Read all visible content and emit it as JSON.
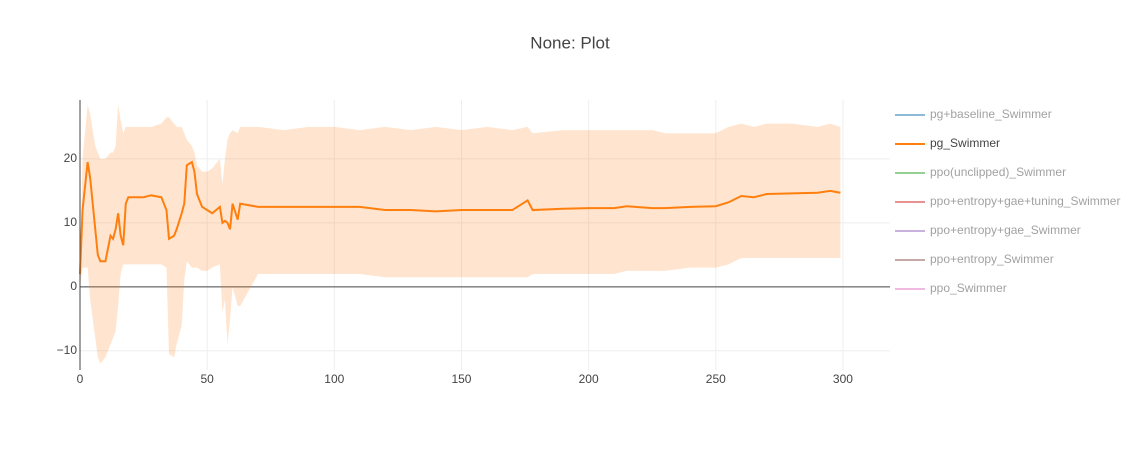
{
  "chart_data": {
    "type": "line",
    "title": "None: Plot",
    "xlim": [
      0,
      318.5
    ],
    "ylim": [
      -13,
      29.2
    ],
    "xticks": [
      0,
      50,
      100,
      150,
      200,
      250,
      300
    ],
    "yticks": [
      {
        "value": -10,
        "label": "−10"
      },
      0,
      10,
      20
    ],
    "grid": true,
    "legend": "right",
    "series": [
      {
        "name": "pg+baseline_Swimmer",
        "color": "#1f77b4",
        "visible": "legendonly"
      },
      {
        "name": "pg_Swimmer",
        "color": "#ff7f0e",
        "band_color": "rgba(255,127,14,0.2)",
        "x": [
          0,
          1,
          3,
          4,
          6,
          7,
          8,
          10,
          12,
          13,
          14,
          15,
          16,
          17,
          18,
          19,
          25,
          28,
          32,
          34,
          35,
          37,
          38,
          40,
          41,
          42,
          44,
          45,
          46,
          48,
          50,
          52,
          55,
          56,
          57,
          58,
          59,
          60,
          62,
          63,
          70,
          80,
          90,
          100,
          110,
          120,
          130,
          140,
          150,
          160,
          170,
          176,
          178,
          190,
          200,
          210,
          215,
          225,
          230,
          240,
          250,
          255,
          260,
          265,
          270,
          280,
          290,
          295,
          299
        ],
        "values": [
          2,
          12,
          19.5,
          17,
          9,
          5,
          4,
          4,
          8,
          7.5,
          9,
          11.5,
          8,
          6.5,
          13,
          14,
          14,
          14.3,
          14,
          12,
          7.5,
          8,
          9,
          11.5,
          13,
          19,
          19.5,
          18,
          14.5,
          12.5,
          12,
          11.5,
          12.5,
          10,
          10.3,
          10,
          9,
          13,
          10.5,
          13,
          12.5,
          12.5,
          12.5,
          12.5,
          12.5,
          12,
          12,
          11.8,
          12,
          12,
          12,
          13.5,
          12,
          12.2,
          12.3,
          12.3,
          12.6,
          12.3,
          12.3,
          12.5,
          12.6,
          13.2,
          14.2,
          14,
          14.5,
          14.6,
          14.7,
          15,
          14.7
        ],
        "upper": [
          3,
          20,
          28.5,
          27,
          22,
          21,
          20,
          20,
          21,
          21,
          22,
          28.5,
          26,
          24,
          25,
          25,
          25,
          25,
          25.5,
          26.5,
          26.5,
          25.5,
          25,
          25,
          24,
          23,
          22,
          21,
          19,
          18,
          18,
          18.5,
          20,
          16,
          20,
          23,
          24,
          24.5,
          24,
          25,
          25,
          24.5,
          25,
          25,
          24.5,
          25,
          24.5,
          25,
          24.5,
          25,
          24.5,
          25,
          24,
          24.5,
          24.5,
          24.5,
          24.5,
          24.5,
          24,
          24,
          24,
          25,
          25.5,
          25,
          25.5,
          25.5,
          25,
          25.5,
          25
        ],
        "lower": [
          0,
          3,
          3,
          -2,
          -8,
          -11,
          -12,
          -11,
          -9,
          -8,
          -7,
          -3,
          2,
          3.5,
          3.5,
          3.5,
          3.5,
          3.5,
          3.5,
          3,
          -10.5,
          -11,
          -9,
          -6,
          1,
          4,
          3,
          3,
          3,
          2.5,
          2.5,
          3,
          3.5,
          -4,
          -2,
          -9,
          -5,
          0,
          -3,
          -3,
          2,
          2,
          2,
          2,
          2,
          1.5,
          1.5,
          1.5,
          1.5,
          1.5,
          1.5,
          1.5,
          2,
          2,
          2,
          2,
          2.5,
          2.5,
          2.5,
          3,
          3,
          3.5,
          4.5,
          4.5,
          4.5,
          4.5,
          4.5,
          4.5,
          4.5
        ]
      },
      {
        "name": "ppo(unclipped)_Swimmer",
        "color": "#2ca02c",
        "visible": "legendonly"
      },
      {
        "name": "ppo+entropy+gae+tuning_Swimmer",
        "color": "#d62728",
        "visible": "legendonly"
      },
      {
        "name": "ppo+entropy+gae_Swimmer",
        "color": "#9467bd",
        "visible": "legendonly"
      },
      {
        "name": "ppo+entropy_Swimmer",
        "color": "#8c564b",
        "visible": "legendonly"
      },
      {
        "name": "ppo_Swimmer",
        "color": "#e377c2",
        "visible": "legendonly"
      }
    ]
  }
}
